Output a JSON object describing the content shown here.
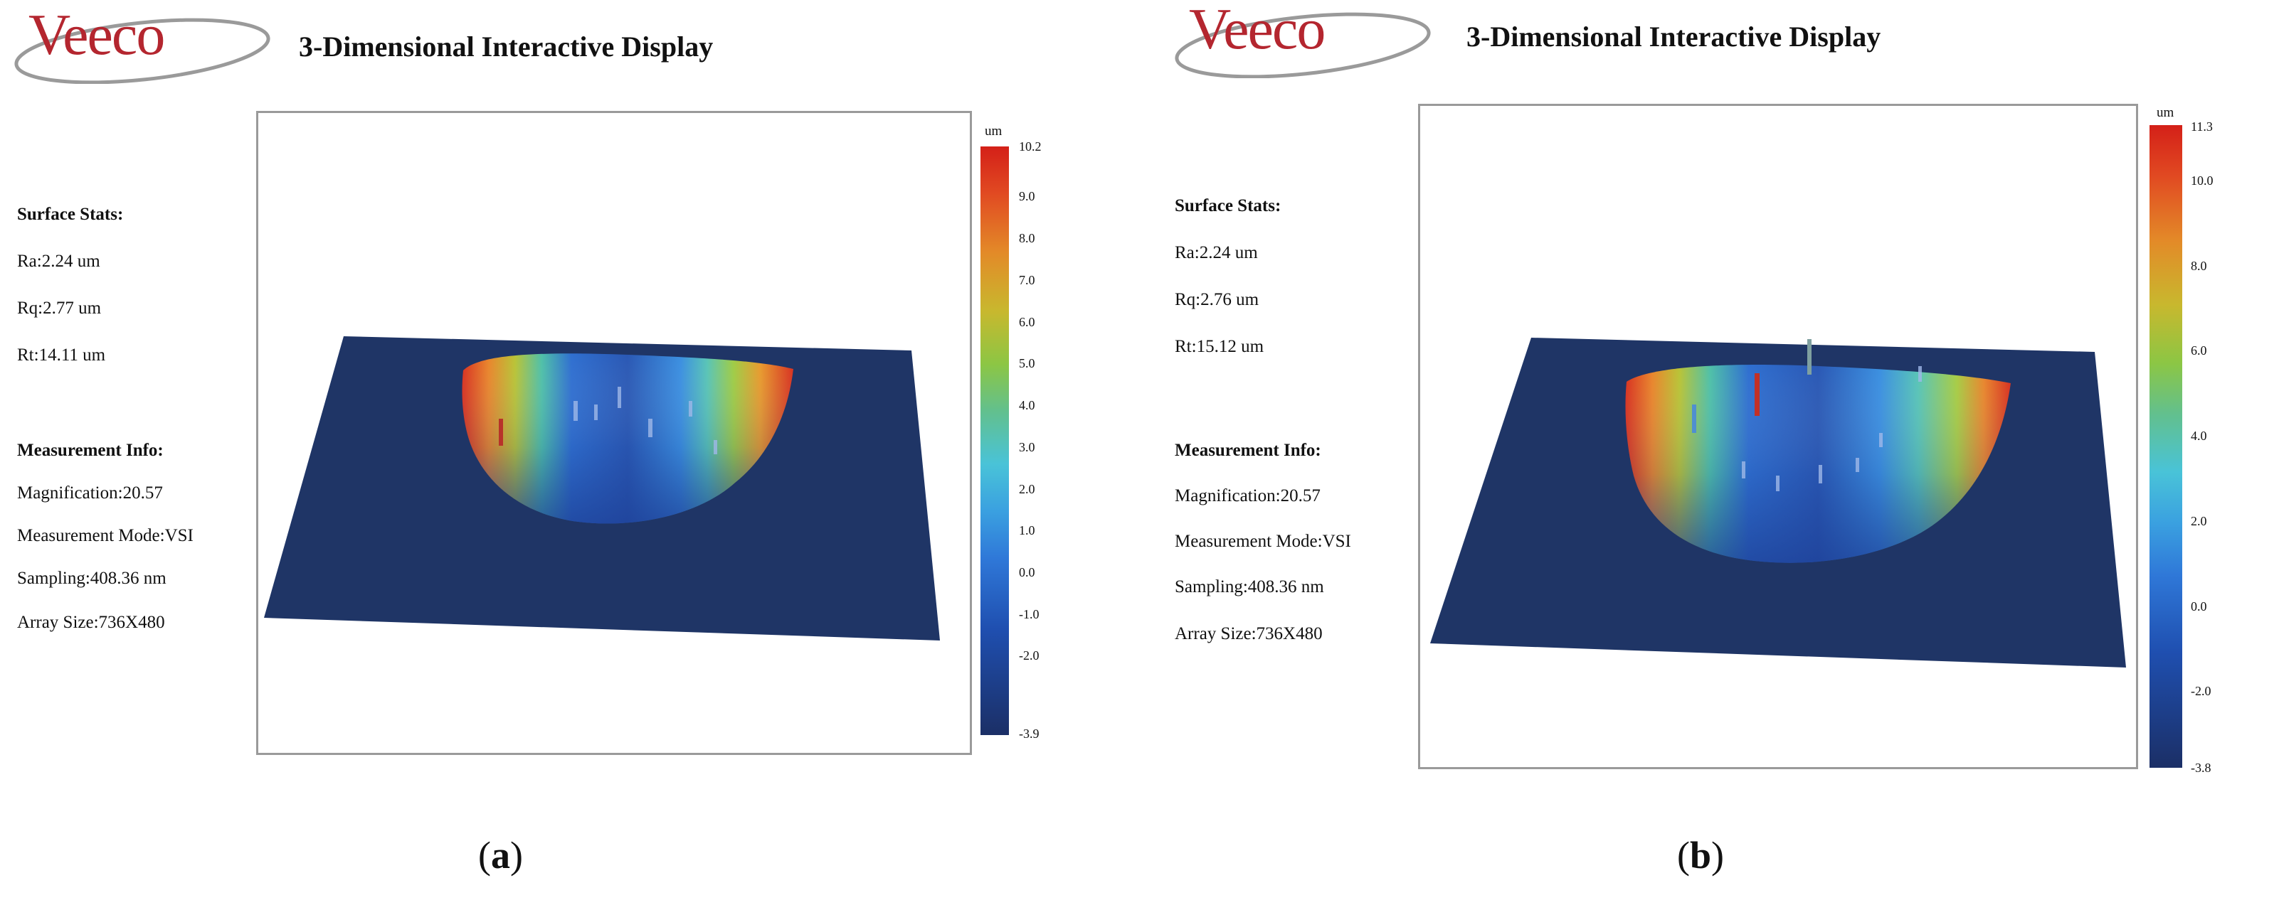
{
  "panels": [
    {
      "logo_text": "Veeco",
      "title": "3-Dimensional Interactive Display",
      "surface_stats": {
        "heading": "Surface Stats:",
        "ra": "Ra:2.24 um",
        "rq": "Rq:2.77 um",
        "rt": "Rt:14.11 um"
      },
      "measurement_info": {
        "heading": "Measurement Info:",
        "magnification": "Magnification:20.57",
        "mode": "Measurement Mode:VSI",
        "sampling": "Sampling:408.36 nm",
        "array_size": "Array Size:736X480"
      },
      "scale": {
        "unit": "um",
        "max": "10.2",
        "min": "-3.9",
        "ticks": [
          "9.0",
          "8.0",
          "7.0",
          "6.0",
          "5.0",
          "4.0",
          "3.0",
          "2.0",
          "1.0",
          "0.0",
          "-1.0",
          "-2.0"
        ]
      },
      "caption": {
        "open": "(",
        "letter": "a",
        "close": ")"
      }
    },
    {
      "logo_text": "Veeco",
      "title": "3-Dimensional Interactive Display",
      "surface_stats": {
        "heading": "Surface Stats:",
        "ra": "Ra:2.24 um",
        "rq": "Rq:2.76 um",
        "rt": "Rt:15.12 um"
      },
      "measurement_info": {
        "heading": "Measurement Info:",
        "magnification": "Magnification:20.57",
        "mode": "Measurement Mode:VSI",
        "sampling": "Sampling:408.36 nm",
        "array_size": "Array Size:736X480"
      },
      "scale": {
        "unit": "um",
        "max": "11.3",
        "min": "-3.8",
        "ticks": [
          "10.0",
          "8.0",
          "6.0",
          "4.0",
          "2.0",
          "0.0",
          "-2.0"
        ]
      },
      "caption": {
        "open": "(",
        "letter": "b",
        "close": ")"
      }
    }
  ],
  "colors": {
    "surface": "#1f3566",
    "crater_low": "#2a5ab8",
    "crater_high": "#d8301e",
    "logo": "#b4262f",
    "frame": "#9a9a9a"
  }
}
